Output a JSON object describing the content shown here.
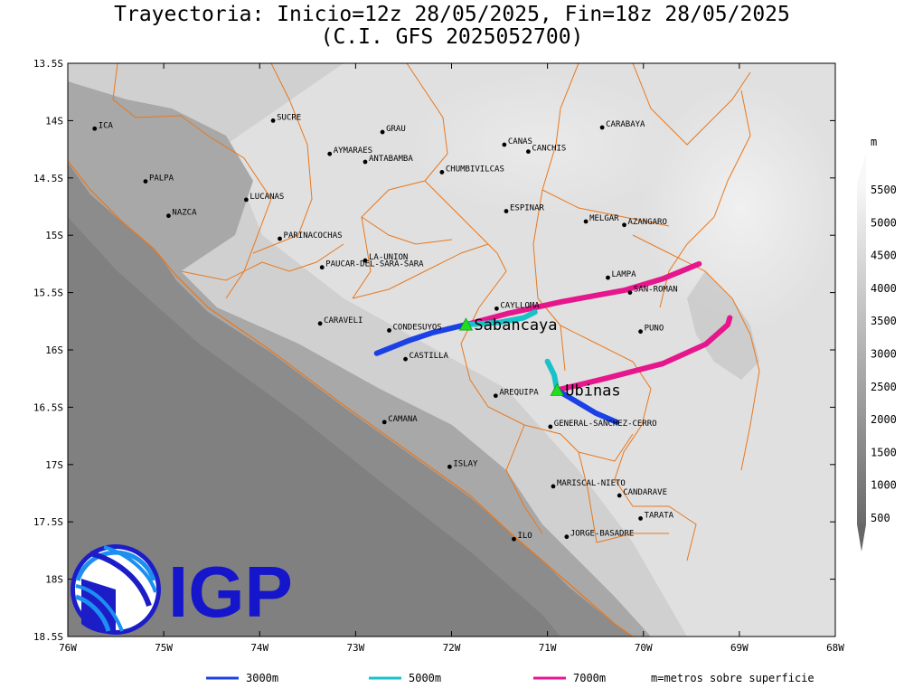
{
  "title": {
    "line1": "Trayectoria: Inicio=12z 28/05/2025, Fin=18z 28/05/2025",
    "line2": "(C.I. GFS 2025052700)"
  },
  "map": {
    "lon_range": [
      -76,
      -68
    ],
    "lat_range": [
      -18.5,
      -13.5
    ],
    "lon_ticks": [
      {
        "v": -76,
        "label": "76W"
      },
      {
        "v": -75,
        "label": "75W"
      },
      {
        "v": -74,
        "label": "74W"
      },
      {
        "v": -73,
        "label": "73W"
      },
      {
        "v": -72,
        "label": "72W"
      },
      {
        "v": -71,
        "label": "71W"
      },
      {
        "v": -70,
        "label": "70W"
      },
      {
        "v": -69,
        "label": "69W"
      },
      {
        "v": -68,
        "label": "68W"
      }
    ],
    "lat_ticks": [
      {
        "v": -13.5,
        "label": "13.5S"
      },
      {
        "v": -14,
        "label": "14S"
      },
      {
        "v": -14.5,
        "label": "14.5S"
      },
      {
        "v": -15,
        "label": "15S"
      },
      {
        "v": -15.5,
        "label": "15.5S"
      },
      {
        "v": -16,
        "label": "16S"
      },
      {
        "v": -16.5,
        "label": "16.5S"
      },
      {
        "v": -17,
        "label": "17S"
      },
      {
        "v": -17.5,
        "label": "17.5S"
      },
      {
        "v": -18,
        "label": "18S"
      },
      {
        "v": -18.5,
        "label": "18.5S"
      }
    ],
    "places": [
      {
        "name": "ICA",
        "lon": -75.72,
        "lat": -14.07
      },
      {
        "name": "SUCRE",
        "lon": -73.86,
        "lat": -14.0
      },
      {
        "name": "GRAU",
        "lon": -72.72,
        "lat": -14.1
      },
      {
        "name": "CARABAYA",
        "lon": -70.43,
        "lat": -14.06
      },
      {
        "name": "CANAS",
        "lon": -71.45,
        "lat": -14.21
      },
      {
        "name": "CANCHIS",
        "lon": -71.2,
        "lat": -14.27
      },
      {
        "name": "AYMARAES",
        "lon": -73.27,
        "lat": -14.29
      },
      {
        "name": "ANTABAMBA",
        "lon": -72.9,
        "lat": -14.36
      },
      {
        "name": "CHUMBIVILCAS",
        "lon": -72.1,
        "lat": -14.45
      },
      {
        "name": "PALPA",
        "lon": -75.19,
        "lat": -14.53
      },
      {
        "name": "LUCANAS",
        "lon": -74.14,
        "lat": -14.69
      },
      {
        "name": "NAZCA",
        "lon": -74.95,
        "lat": -14.83
      },
      {
        "name": "ESPINAR",
        "lon": -71.43,
        "lat": -14.79
      },
      {
        "name": "MELGAR",
        "lon": -70.6,
        "lat": -14.88
      },
      {
        "name": "AZANGARO",
        "lon": -70.2,
        "lat": -14.91
      },
      {
        "name": "PARINACOCHAS",
        "lon": -73.79,
        "lat": -15.03
      },
      {
        "name": "LA-UNION",
        "lon": -72.9,
        "lat": -15.22
      },
      {
        "name": "PAUCAR-DEL-SARA-SARA",
        "lon": -73.35,
        "lat": -15.28
      },
      {
        "name": "LAMPA",
        "lon": -70.37,
        "lat": -15.37
      },
      {
        "name": "SAN-ROMAN",
        "lon": -70.14,
        "lat": -15.5
      },
      {
        "name": "CAYLLOMA",
        "lon": -71.53,
        "lat": -15.64
      },
      {
        "name": "CARAVELI",
        "lon": -73.37,
        "lat": -15.77
      },
      {
        "name": "CONDESUYOS",
        "lon": -72.65,
        "lat": -15.83
      },
      {
        "name": "PUNO",
        "lon": -70.03,
        "lat": -15.84
      },
      {
        "name": "CASTILLA",
        "lon": -72.48,
        "lat": -16.08
      },
      {
        "name": "AREQUIPA",
        "lon": -71.54,
        "lat": -16.4
      },
      {
        "name": "GENERAL-SANCHEZ-CERRO",
        "lon": -70.97,
        "lat": -16.67
      },
      {
        "name": "CAMANA",
        "lon": -72.7,
        "lat": -16.63
      },
      {
        "name": "ISLAY",
        "lon": -72.02,
        "lat": -17.02
      },
      {
        "name": "MARISCAL-NIETO",
        "lon": -70.94,
        "lat": -17.19
      },
      {
        "name": "CANDARAVE",
        "lon": -70.25,
        "lat": -17.27
      },
      {
        "name": "TARATA",
        "lon": -70.03,
        "lat": -17.47
      },
      {
        "name": "JORGE-BASADRE",
        "lon": -70.8,
        "lat": -17.63
      },
      {
        "name": "ILO",
        "lon": -71.35,
        "lat": -17.65
      }
    ],
    "volcanoes": [
      {
        "name": "Sabancaya",
        "lon": -71.85,
        "lat": -15.78
      },
      {
        "name": "Ubinas",
        "lon": -70.9,
        "lat": -16.35
      }
    ],
    "trajectories": [
      {
        "volcano": "Sabancaya",
        "level": "3000m",
        "color": "#1a40e6",
        "points": [
          [
            -71.85,
            -15.78
          ],
          [
            -72.2,
            -15.85
          ],
          [
            -72.45,
            -15.92
          ],
          [
            -72.78,
            -16.03
          ]
        ]
      },
      {
        "volcano": "Sabancaya",
        "level": "5000m",
        "color": "#19c2c9",
        "points": [
          [
            -71.85,
            -15.78
          ],
          [
            -71.5,
            -15.76
          ],
          [
            -71.25,
            -15.72
          ],
          [
            -71.13,
            -15.67
          ]
        ]
      },
      {
        "volcano": "Sabancaya",
        "level": "7000m",
        "color": "#e6168c",
        "points": [
          [
            -71.85,
            -15.78
          ],
          [
            -71.4,
            -15.68
          ],
          [
            -70.85,
            -15.58
          ],
          [
            -70.2,
            -15.48
          ],
          [
            -69.8,
            -15.38
          ],
          [
            -69.42,
            -15.25
          ]
        ]
      },
      {
        "volcano": "Ubinas",
        "level": "3000m",
        "color": "#1a40e6",
        "points": [
          [
            -70.9,
            -16.35
          ],
          [
            -70.7,
            -16.45
          ],
          [
            -70.5,
            -16.55
          ],
          [
            -70.28,
            -16.63
          ]
        ]
      },
      {
        "volcano": "Ubinas",
        "level": "5000m",
        "color": "#19c2c9",
        "points": [
          [
            -70.9,
            -16.35
          ],
          [
            -70.93,
            -16.22
          ],
          [
            -71.0,
            -16.1
          ]
        ]
      },
      {
        "volcano": "Ubinas",
        "level": "7000m",
        "color": "#e6168c",
        "points": [
          [
            -70.9,
            -16.35
          ],
          [
            -70.4,
            -16.25
          ],
          [
            -69.8,
            -16.12
          ],
          [
            -69.35,
            -15.95
          ],
          [
            -69.12,
            -15.78
          ],
          [
            -69.1,
            -15.72
          ]
        ]
      }
    ]
  },
  "colorbar": {
    "unit": "m",
    "labels": [
      "500",
      "1000",
      "1500",
      "2000",
      "2500",
      "3000",
      "3500",
      "4000",
      "4500",
      "5000",
      "5500"
    ]
  },
  "legend": {
    "items": [
      {
        "label": "3000m",
        "color": "#1a40e6"
      },
      {
        "label": "5000m",
        "color": "#19c2c9"
      },
      {
        "label": "7000m",
        "color": "#e6168c"
      }
    ],
    "note": "m=metros sobre superficie"
  },
  "logo": {
    "text": "IGP"
  },
  "colors": {
    "border": "#e8781e",
    "terrain_low": "#6e6e6e",
    "terrain_high": "#f4f4f4",
    "marker": "#22dd22"
  }
}
